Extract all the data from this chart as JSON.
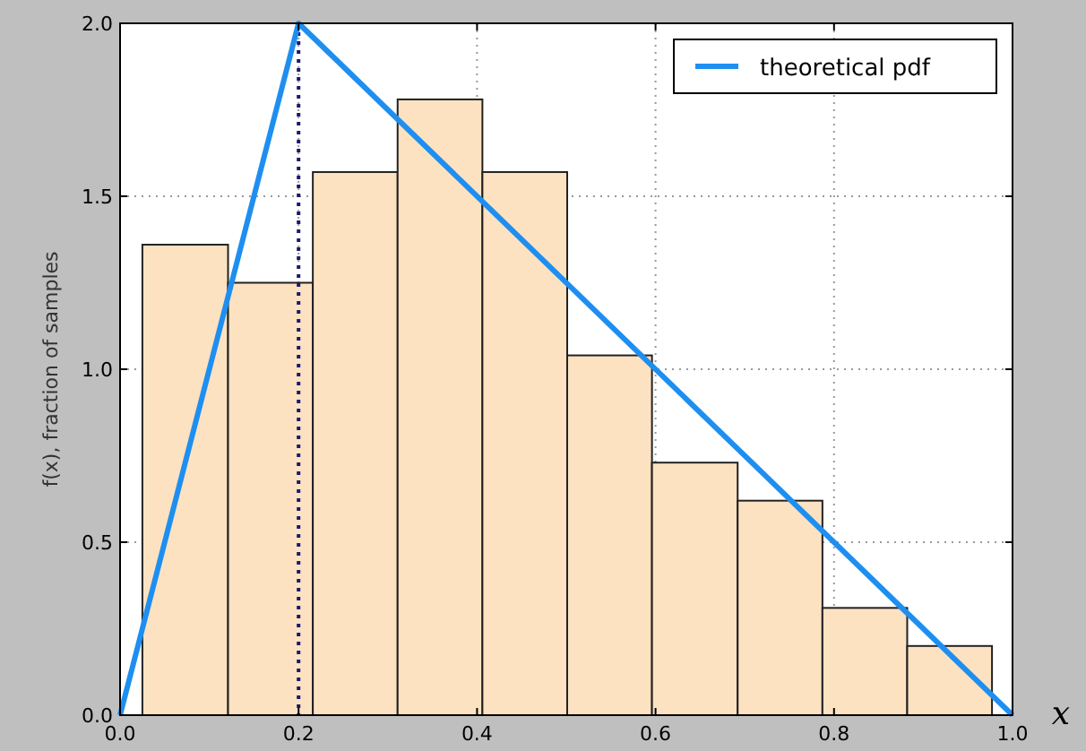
{
  "chart_data": {
    "type": "histogram",
    "xlabel": "x",
    "ylabel": "f(x), fraction of samples",
    "bins": [
      0.025,
      0.121,
      0.216,
      0.311,
      0.406,
      0.501,
      0.596,
      0.692,
      0.787,
      0.882,
      0.977
    ],
    "values": [
      1.36,
      1.25,
      1.57,
      1.78,
      1.57,
      1.04,
      0.73,
      0.62,
      0.31,
      0.2
    ],
    "color": "#fde2c2",
    "series": [
      {
        "name": "theoretical pdf",
        "type": "line",
        "x": [
          0,
          0.2,
          1
        ],
        "values": [
          0,
          2,
          0
        ],
        "color": "#1e8ff0"
      }
    ],
    "ref_lines": [
      {
        "axis": "x",
        "value": 0.2,
        "color": "#1a1a6e",
        "line_style": "dotted"
      }
    ],
    "xlim": [
      0,
      1
    ],
    "ylim": [
      0,
      2
    ],
    "xticks": [
      {
        "value": 0,
        "label": "0.0"
      },
      {
        "value": 0.2,
        "label": "0.2"
      },
      {
        "value": 0.4,
        "label": "0.4"
      },
      {
        "value": 0.6,
        "label": "0.6"
      },
      {
        "value": 0.8,
        "label": "0.8"
      },
      {
        "value": 1,
        "label": "1.0"
      }
    ],
    "yticks": [
      {
        "value": 0,
        "label": "0.0"
      },
      {
        "value": 0.5,
        "label": "0.5"
      },
      {
        "value": 1,
        "label": "1.0"
      },
      {
        "value": 1.5,
        "label": "1.5"
      },
      {
        "value": 2,
        "label": "2.0"
      }
    ],
    "grid": true,
    "legend": "top right"
  }
}
